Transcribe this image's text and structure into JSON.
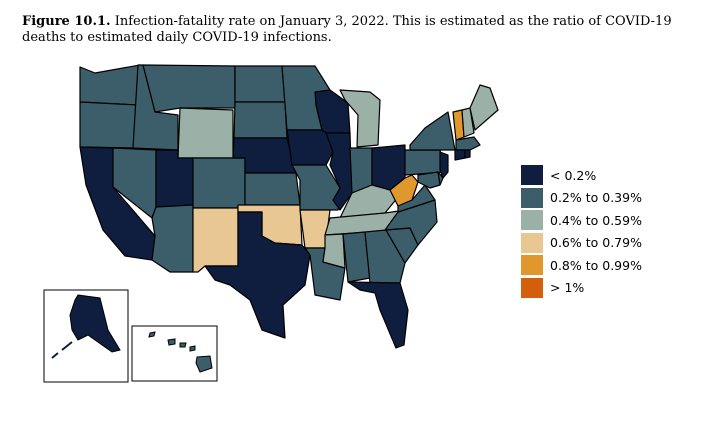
{
  "caption": {
    "label": "Figure 10.1.",
    "text": "Infection-fatality rate on January 3, 2022. This is estimated as the ratio of COVID-19 deaths to estimated daily COVID-19 infections."
  },
  "colors": {
    "lt_0_2": "#0f1e3e",
    "0_2_to_0_39": "#3c5e6a",
    "0_4_to_0_59": "#9bb0a6",
    "0_6_to_0_79": "#e8c793",
    "0_8_to_0_99": "#e0982c",
    "gt_1": "#d35f0d",
    "border": "#000000"
  },
  "legend": [
    {
      "label": "< 0.2%",
      "color": "#0f1e3e"
    },
    {
      "label": "0.2% to 0.39%",
      "color": "#3c5e6a"
    },
    {
      "label": "0.4% to 0.59%",
      "color": "#9bb0a6"
    },
    {
      "label": "0.6% to 0.79%",
      "color": "#e8c793"
    },
    {
      "label": "0.8% to 0.99%",
      "color": "#e0982c"
    },
    {
      "label": "> 1%",
      "color": "#d35f0d"
    }
  ],
  "states": [
    {
      "state": "WA",
      "bin": "0.2% to 0.39%"
    },
    {
      "state": "OR",
      "bin": "0.2% to 0.39%"
    },
    {
      "state": "CA",
      "bin": "< 0.2%"
    },
    {
      "state": "NV",
      "bin": "0.2% to 0.39%"
    },
    {
      "state": "ID",
      "bin": "0.2% to 0.39%"
    },
    {
      "state": "MT",
      "bin": "0.2% to 0.39%"
    },
    {
      "state": "WY",
      "bin": "0.4% to 0.59%"
    },
    {
      "state": "UT",
      "bin": "< 0.2%"
    },
    {
      "state": "AZ",
      "bin": "0.2% to 0.39%"
    },
    {
      "state": "CO",
      "bin": "0.2% to 0.39%"
    },
    {
      "state": "NM",
      "bin": "0.6% to 0.79%"
    },
    {
      "state": "ND",
      "bin": "0.2% to 0.39%"
    },
    {
      "state": "SD",
      "bin": "0.2% to 0.39%"
    },
    {
      "state": "NE",
      "bin": "< 0.2%"
    },
    {
      "state": "KS",
      "bin": "0.2% to 0.39%"
    },
    {
      "state": "OK",
      "bin": "0.6% to 0.79%"
    },
    {
      "state": "TX",
      "bin": "< 0.2%"
    },
    {
      "state": "MN",
      "bin": "0.2% to 0.39%"
    },
    {
      "state": "IA",
      "bin": "< 0.2%"
    },
    {
      "state": "MO",
      "bin": "0.2% to 0.39%"
    },
    {
      "state": "AR",
      "bin": "0.6% to 0.79%"
    },
    {
      "state": "LA",
      "bin": "0.2% to 0.39%"
    },
    {
      "state": "WI",
      "bin": "< 0.2%"
    },
    {
      "state": "IL",
      "bin": "< 0.2%"
    },
    {
      "state": "MI",
      "bin": "0.4% to 0.59%"
    },
    {
      "state": "IN",
      "bin": "0.2% to 0.39%"
    },
    {
      "state": "OH",
      "bin": "< 0.2%"
    },
    {
      "state": "KY",
      "bin": "0.4% to 0.59%"
    },
    {
      "state": "TN",
      "bin": "0.4% to 0.59%"
    },
    {
      "state": "MS",
      "bin": "0.4% to 0.59%"
    },
    {
      "state": "AL",
      "bin": "0.2% to 0.39%"
    },
    {
      "state": "GA",
      "bin": "0.2% to 0.39%"
    },
    {
      "state": "FL",
      "bin": "< 0.2%"
    },
    {
      "state": "SC",
      "bin": "0.2% to 0.39%"
    },
    {
      "state": "NC",
      "bin": "0.2% to 0.39%"
    },
    {
      "state": "VA",
      "bin": "0.2% to 0.39%"
    },
    {
      "state": "WV",
      "bin": "0.8% to 0.99%"
    },
    {
      "state": "PA",
      "bin": "0.2% to 0.39%"
    },
    {
      "state": "NY",
      "bin": "0.2% to 0.39%"
    },
    {
      "state": "VT",
      "bin": "0.8% to 0.99%"
    },
    {
      "state": "NH",
      "bin": "0.4% to 0.59%"
    },
    {
      "state": "ME",
      "bin": "0.4% to 0.59%"
    },
    {
      "state": "MA",
      "bin": "0.2% to 0.39%"
    },
    {
      "state": "CT",
      "bin": "< 0.2%"
    },
    {
      "state": "RI",
      "bin": "< 0.2%"
    },
    {
      "state": "NJ",
      "bin": "< 0.2%"
    },
    {
      "state": "DE",
      "bin": "0.2% to 0.39%"
    },
    {
      "state": "MD",
      "bin": "0.2% to 0.39%"
    },
    {
      "state": "AK",
      "bin": "< 0.2%"
    },
    {
      "state": "HI",
      "bin": "0.2% to 0.39%"
    }
  ]
}
